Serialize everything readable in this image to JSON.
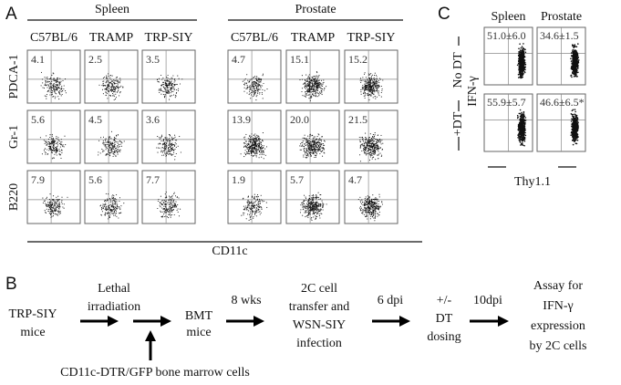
{
  "panel_a": {
    "label": "A",
    "groups": [
      {
        "title": "Spleen",
        "columns": [
          "C57BL/6",
          "TRAMP",
          "TRP-SIY"
        ]
      },
      {
        "title": "Prostate",
        "columns": [
          "C57BL/6",
          "TRAMP",
          "TRP-SIY"
        ]
      }
    ],
    "rows": [
      "PDCA-1",
      "Gr-1",
      "B220"
    ],
    "values": [
      [
        "4.1",
        "2.5",
        "3.5",
        "4.7",
        "15.1",
        "15.2"
      ],
      [
        "5.6",
        "4.5",
        "3.6",
        "13.9",
        "20.0",
        "21.5"
      ],
      [
        "7.9",
        "5.6",
        "7.7",
        "1.9",
        "5.7",
        "4.7"
      ]
    ],
    "x_label": "CD11c"
  },
  "panel_b": {
    "label": "B",
    "start": [
      "TRP-SIY",
      "mice"
    ],
    "step1": [
      "Lethal",
      "irradiation"
    ],
    "input": "CD11c-DTR/GFP bone marrow cells",
    "bmt": [
      "BMT",
      "mice"
    ],
    "step2": "8 wks",
    "transfer": [
      "2C cell",
      "transfer and",
      "WSN-SIY",
      "infection"
    ],
    "step3": "6 dpi",
    "dosing": [
      "+/-",
      "DT",
      "dosing"
    ],
    "step4": "10dpi",
    "assay": [
      "Assay for",
      "IFN-γ",
      "expression",
      "by 2C cells"
    ]
  },
  "panel_c": {
    "label": "C",
    "columns": [
      "Spleen",
      "Prostate"
    ],
    "rows": [
      "No DT",
      "+DT"
    ],
    "values": [
      [
        "51.0±6.0",
        "34.6±1.5"
      ],
      [
        "55.9±5.7",
        "46.6±6.5*"
      ]
    ],
    "y_label": "IFN-γ",
    "x_label": "Thy1.1"
  }
}
